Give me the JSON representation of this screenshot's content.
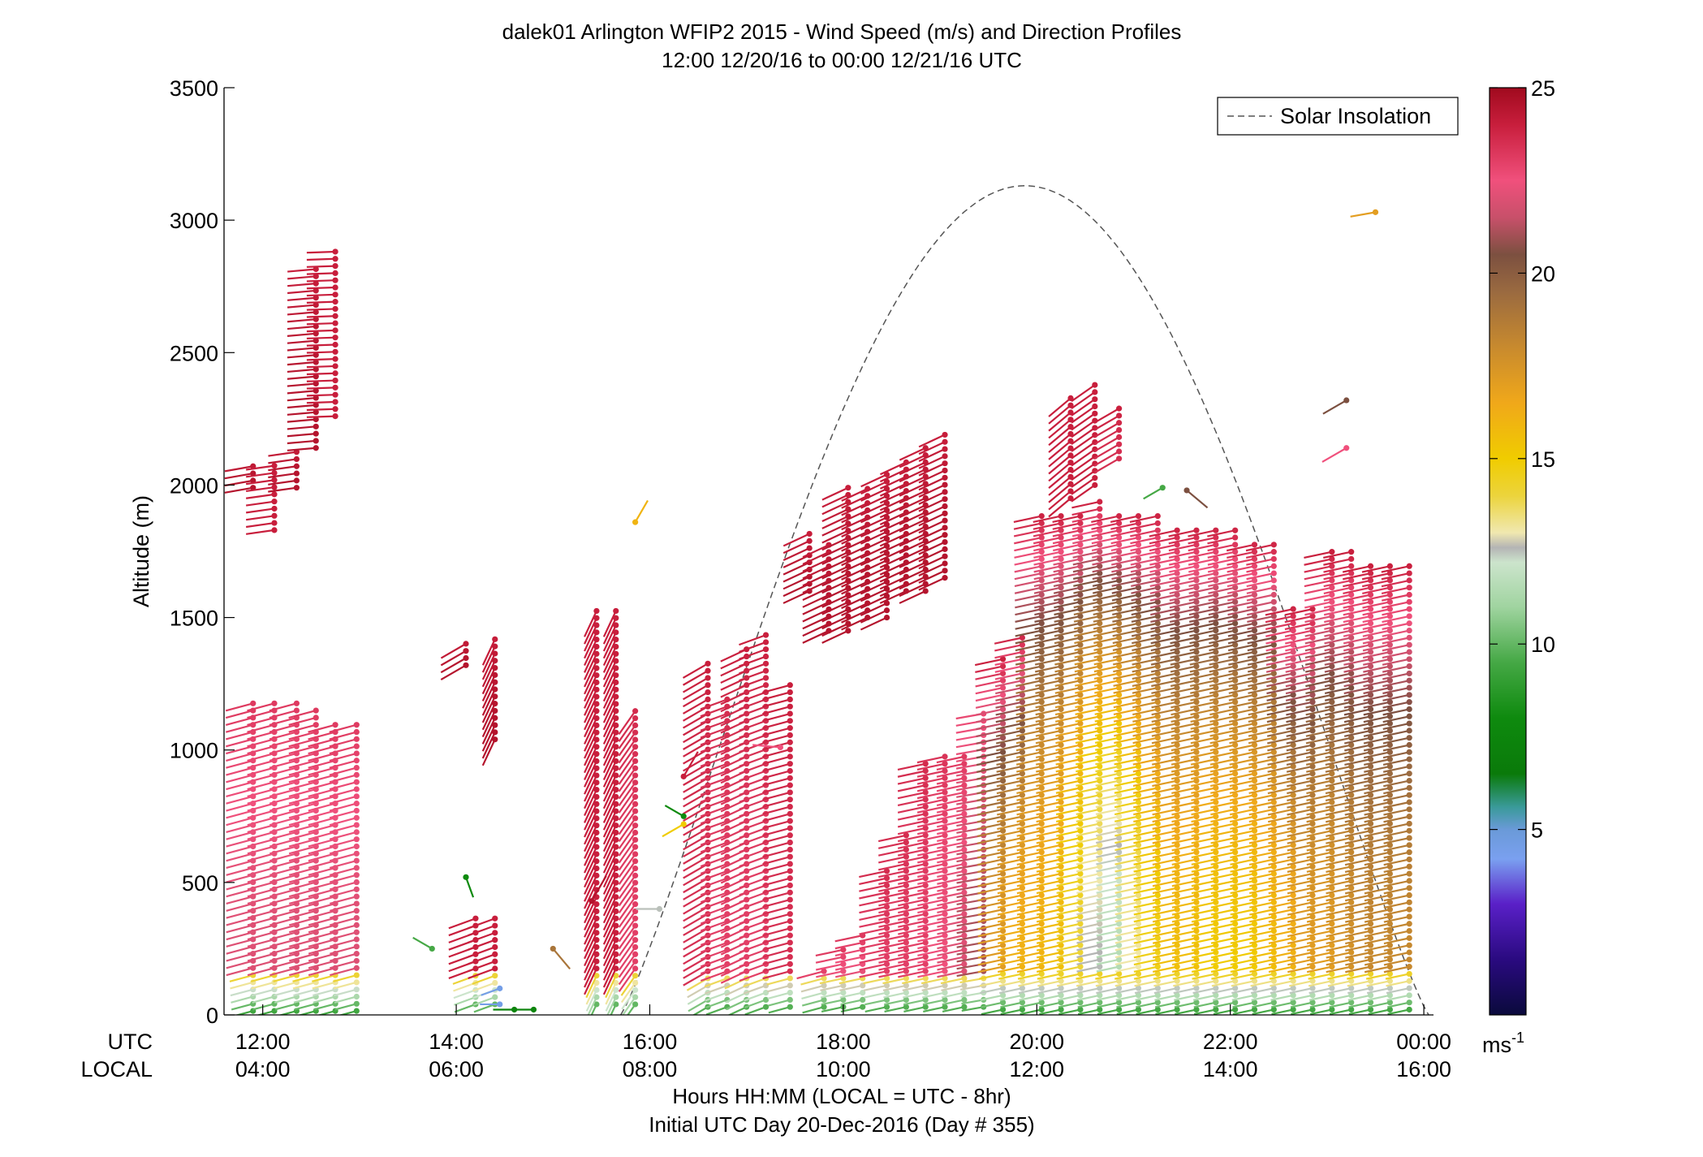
{
  "chart_data": {
    "type": "scatter",
    "title": "dalek01 Arlington WFIP2 2015 - Wind Speed (m/s) and Direction Profiles",
    "subtitle": "12:00 12/20/16 to 00:00 12/21/16  UTC",
    "ylabel": "Altitude (m)",
    "xlabel": "Hours HH:MM  (LOCAL = UTC - 8hr)",
    "xlabel2": "Initial UTC Day 20-Dec-2016 (Day # 355)",
    "row_label_utc": "UTC",
    "row_label_local": "LOCAL",
    "xlim": [
      11.6,
      24.1
    ],
    "ylim": [
      0,
      3500
    ],
    "x_ticks_utc": [
      {
        "x": 12,
        "label": "12:00"
      },
      {
        "x": 14,
        "label": "14:00"
      },
      {
        "x": 16,
        "label": "16:00"
      },
      {
        "x": 18,
        "label": "18:00"
      },
      {
        "x": 20,
        "label": "20:00"
      },
      {
        "x": 22,
        "label": "22:00"
      },
      {
        "x": 24,
        "label": "00:00"
      }
    ],
    "x_ticks_local": [
      "04:00",
      "06:00",
      "08:00",
      "10:00",
      "12:00",
      "14:00",
      "16:00"
    ],
    "y_ticks": [
      {
        "y": 0,
        "label": "0"
      },
      {
        "y": 500,
        "label": "500"
      },
      {
        "y": 1000,
        "label": "1000"
      },
      {
        "y": 1500,
        "label": "1500"
      },
      {
        "y": 2000,
        "label": "2000"
      },
      {
        "y": 2500,
        "label": "2500"
      },
      {
        "y": 3000,
        "label": "3000"
      },
      {
        "y": 3500,
        "label": "3500"
      }
    ],
    "legend": {
      "label": "Solar Insolation",
      "placement": "top-right",
      "line_style": "dashed",
      "color": "#555555"
    },
    "solar_insolation": {
      "sunrise": 15.7,
      "sunset": 24.05,
      "peak_time": 19.85,
      "peak_altitude": 3130
    },
    "colorbar": {
      "label": "ms",
      "label_superscript": "-1",
      "range": [
        0,
        25
      ],
      "ticks": [
        {
          "v": 5,
          "label": "5"
        },
        {
          "v": 10,
          "label": "10"
        },
        {
          "v": 15,
          "label": "15"
        },
        {
          "v": 20,
          "label": "20"
        },
        {
          "v": 25,
          "label": "25"
        }
      ],
      "stops": [
        {
          "v": 0,
          "color": "#0a0a3c"
        },
        {
          "v": 1.5,
          "color": "#2a0a80"
        },
        {
          "v": 3,
          "color": "#5a20c8"
        },
        {
          "v": 4.2,
          "color": "#7aa0f0"
        },
        {
          "v": 5,
          "color": "#6a9ad8"
        },
        {
          "v": 5.6,
          "color": "#3a9a9a"
        },
        {
          "v": 6.5,
          "color": "#0a7a0a"
        },
        {
          "v": 8,
          "color": "#0e8a0e"
        },
        {
          "v": 9.5,
          "color": "#45a845"
        },
        {
          "v": 11,
          "color": "#a0d4a0"
        },
        {
          "v": 12.2,
          "color": "#cce4cc"
        },
        {
          "v": 12.6,
          "color": "#b4b4b4"
        },
        {
          "v": 13,
          "color": "#f0e8b0"
        },
        {
          "v": 14,
          "color": "#ecd43c"
        },
        {
          "v": 15,
          "color": "#f0cc00"
        },
        {
          "v": 16.5,
          "color": "#f0a81a"
        },
        {
          "v": 18,
          "color": "#c88a2e"
        },
        {
          "v": 19.5,
          "color": "#9a6a40"
        },
        {
          "v": 20.5,
          "color": "#7c5040"
        },
        {
          "v": 21.5,
          "color": "#c8506a"
        },
        {
          "v": 22.5,
          "color": "#f0507c"
        },
        {
          "v": 24,
          "color": "#c81e3c"
        },
        {
          "v": 25,
          "color": "#a00a1e"
        }
      ]
    },
    "profiles": [
      {
        "t": 11.9,
        "h0": 1990,
        "h1": 2095,
        "spd": 24.5,
        "dir": 260
      },
      {
        "t": 12.12,
        "h0": 1830,
        "h1": 2095,
        "spd": 24,
        "dir": 262
      },
      {
        "t": 12.35,
        "h0": 1990,
        "h1": 2150,
        "spd": 24.5,
        "dir": 262
      },
      {
        "t": 12.55,
        "h0": 2140,
        "h1": 2830,
        "spd": 24.5,
        "dir": 265
      },
      {
        "t": 12.75,
        "h0": 2260,
        "h1": 2900,
        "spd": 24,
        "dir": 268
      },
      {
        "t": 11.9,
        "h0": 15,
        "h1": 1180,
        "spd": 22,
        "dir": 255
      },
      {
        "t": 12.12,
        "h0": 15,
        "h1": 1200,
        "spd": 22,
        "dir": 255
      },
      {
        "t": 12.35,
        "h0": 15,
        "h1": 1200,
        "spd": 22,
        "dir": 255
      },
      {
        "t": 12.55,
        "h0": 15,
        "h1": 1160,
        "spd": 22,
        "dir": 255
      },
      {
        "t": 12.75,
        "h0": 15,
        "h1": 1120,
        "spd": 22,
        "dir": 255
      },
      {
        "t": 12.97,
        "h0": 15,
        "h1": 1120,
        "spd": 22,
        "dir": 255
      },
      {
        "t": 14.1,
        "h0": 1320,
        "h1": 1420,
        "spd": 24.5,
        "dir": 240
      },
      {
        "t": 14.2,
        "h0": 40,
        "h1": 380,
        "spd": 24,
        "dir": 250
      },
      {
        "t": 14.4,
        "h0": 40,
        "h1": 380,
        "spd": 24,
        "dir": 250
      },
      {
        "t": 14.4,
        "h0": 1040,
        "h1": 1440,
        "spd": 24.5,
        "dir": 205
      },
      {
        "t": 15.45,
        "h0": 40,
        "h1": 1550,
        "spd": 24,
        "dir": 205
      },
      {
        "t": 15.65,
        "h0": 40,
        "h1": 1550,
        "spd": 24,
        "dir": 205
      },
      {
        "t": 15.85,
        "h0": 40,
        "h1": 1150,
        "spd": 23,
        "dir": 215
      },
      {
        "t": 16.6,
        "h0": 30,
        "h1": 1330,
        "spd": 23.5,
        "dir": 240
      },
      {
        "t": 16.8,
        "h0": 30,
        "h1": 1200,
        "spd": 23,
        "dir": 250
      },
      {
        "t": 17.0,
        "h0": 30,
        "h1": 1400,
        "spd": 23,
        "dir": 245
      },
      {
        "t": 17.2,
        "h0": 30,
        "h1": 1450,
        "spd": 23,
        "dir": 250
      },
      {
        "t": 17.45,
        "h0": 30,
        "h1": 1250,
        "spd": 23.5,
        "dir": 255
      },
      {
        "t": 17.65,
        "h0": 1600,
        "h1": 1820,
        "spd": 24.5,
        "dir": 245
      },
      {
        "t": 17.8,
        "h0": 30,
        "h1": 180,
        "spd": 22,
        "dir": 255
      },
      {
        "t": 17.85,
        "h0": 1450,
        "h1": 1800,
        "spd": 24.5,
        "dir": 245
      },
      {
        "t": 18.05,
        "h0": 1450,
        "h1": 2000,
        "spd": 24.5,
        "dir": 245
      },
      {
        "t": 18.25,
        "h0": 1500,
        "h1": 2000,
        "spd": 24.5,
        "dir": 245
      },
      {
        "t": 18.45,
        "h0": 1500,
        "h1": 2050,
        "spd": 24.5,
        "dir": 245
      },
      {
        "t": 18.65,
        "h0": 1600,
        "h1": 2100,
        "spd": 24.5,
        "dir": 245
      },
      {
        "t": 18.85,
        "h0": 1600,
        "h1": 2150,
        "spd": 24.5,
        "dir": 245
      },
      {
        "t": 19.05,
        "h0": 1650,
        "h1": 2200,
        "spd": 24.5,
        "dir": 245
      },
      {
        "t": 18.0,
        "h0": 30,
        "h1": 250,
        "spd": 22,
        "dir": 258
      },
      {
        "t": 18.2,
        "h0": 30,
        "h1": 300,
        "spd": 22,
        "dir": 258
      },
      {
        "t": 18.45,
        "h0": 30,
        "h1": 550,
        "spd": 23,
        "dir": 258
      },
      {
        "t": 18.65,
        "h0": 30,
        "h1": 700,
        "spd": 23,
        "dir": 258
      },
      {
        "t": 18.85,
        "h0": 30,
        "h1": 950,
        "spd": 23,
        "dir": 258
      },
      {
        "t": 19.05,
        "h0": 30,
        "h1": 1000,
        "spd": 22.5,
        "dir": 258
      },
      {
        "t": 19.25,
        "h0": 30,
        "h1": 1000,
        "spd": 22,
        "dir": 258
      },
      {
        "t": 19.45,
        "h0": 30,
        "h1": 1150,
        "spd": 21,
        "dir": 260
      },
      {
        "t": 19.65,
        "h0": 20,
        "h1": 1350,
        "spd": 17,
        "dir": 258
      },
      {
        "t": 19.85,
        "h0": 20,
        "h1": 1450,
        "spd": 16,
        "dir": 258
      },
      {
        "t": 20.05,
        "h0": 20,
        "h1": 1900,
        "spd": 16,
        "dir": 258
      },
      {
        "t": 20.25,
        "h0": 20,
        "h1": 1900,
        "spd": 15.5,
        "dir": 258
      },
      {
        "t": 20.45,
        "h0": 20,
        "h1": 1900,
        "spd": 14,
        "dir": 258
      },
      {
        "t": 20.65,
        "h0": 20,
        "h1": 1950,
        "spd": 12.5,
        "dir": 258
      },
      {
        "t": 20.85,
        "h0": 20,
        "h1": 1900,
        "spd": 11.5,
        "dir": 258
      },
      {
        "t": 21.05,
        "h0": 20,
        "h1": 1900,
        "spd": 13,
        "dir": 258
      },
      {
        "t": 21.25,
        "h0": 20,
        "h1": 1900,
        "spd": 14.5,
        "dir": 258
      },
      {
        "t": 21.45,
        "h0": 20,
        "h1": 1850,
        "spd": 15.5,
        "dir": 258
      },
      {
        "t": 21.65,
        "h0": 20,
        "h1": 1850,
        "spd": 15.5,
        "dir": 258
      },
      {
        "t": 21.85,
        "h0": 20,
        "h1": 1850,
        "spd": 15,
        "dir": 258
      },
      {
        "t": 22.05,
        "h0": 20,
        "h1": 1850,
        "spd": 15,
        "dir": 258
      },
      {
        "t": 22.25,
        "h0": 20,
        "h1": 1800,
        "spd": 15,
        "dir": 258
      },
      {
        "t": 22.45,
        "h0": 20,
        "h1": 1800,
        "spd": 15.5,
        "dir": 258
      },
      {
        "t": 22.65,
        "h0": 20,
        "h1": 1550,
        "spd": 16,
        "dir": 258
      },
      {
        "t": 22.85,
        "h0": 20,
        "h1": 1550,
        "spd": 17,
        "dir": 258
      },
      {
        "t": 23.05,
        "h0": 20,
        "h1": 1750,
        "spd": 17,
        "dir": 258
      },
      {
        "t": 23.25,
        "h0": 20,
        "h1": 1750,
        "spd": 17.5,
        "dir": 258
      },
      {
        "t": 23.45,
        "h0": 20,
        "h1": 1700,
        "spd": 18,
        "dir": 258
      },
      {
        "t": 23.65,
        "h0": 20,
        "h1": 1700,
        "spd": 18,
        "dir": 258
      },
      {
        "t": 23.85,
        "h0": 20,
        "h1": 1700,
        "spd": 18,
        "dir": 258
      },
      {
        "t": 20.35,
        "h0": 1950,
        "h1": 2350,
        "spd": 24,
        "dir": 230
      },
      {
        "t": 20.6,
        "h0": 2000,
        "h1": 2400,
        "spd": 24,
        "dir": 235
      },
      {
        "t": 20.85,
        "h0": 2100,
        "h1": 2300,
        "spd": 23.5,
        "dir": 240
      }
    ],
    "isolated_barbs": [
      {
        "t": 14.1,
        "h": 520,
        "spd": 8,
        "dir": 160
      },
      {
        "t": 14.6,
        "h": 20,
        "spd": 7.5,
        "dir": 270
      },
      {
        "t": 14.8,
        "h": 20,
        "spd": 7.5,
        "dir": 270
      },
      {
        "t": 13.75,
        "h": 250,
        "spd": 9.5,
        "dir": 300
      },
      {
        "t": 14.45,
        "h": 100,
        "spd": 4.5,
        "dir": 250
      },
      {
        "t": 14.45,
        "h": 40,
        "spd": 4.5,
        "dir": 270
      },
      {
        "t": 15.0,
        "h": 250,
        "spd": 19,
        "dir": 140
      },
      {
        "t": 15.4,
        "h": 430,
        "spd": 24.5,
        "dir": 30
      },
      {
        "t": 15.85,
        "h": 1860,
        "spd": 16,
        "dir": 30
      },
      {
        "t": 16.35,
        "h": 750,
        "spd": 8,
        "dir": 300
      },
      {
        "t": 16.35,
        "h": 720,
        "spd": 15,
        "dir": 240
      },
      {
        "t": 16.1,
        "h": 400,
        "spd": 12.5,
        "dir": 270
      },
      {
        "t": 16.35,
        "h": 900,
        "spd": 24,
        "dir": 30
      },
      {
        "t": 17.35,
        "h": 1010,
        "spd": 22.5,
        "dir": 275
      },
      {
        "t": 23.2,
        "h": 2320,
        "spd": 20.5,
        "dir": 240
      },
      {
        "t": 23.2,
        "h": 2140,
        "spd": 22.5,
        "dir": 240
      },
      {
        "t": 23.5,
        "h": 3030,
        "spd": 17,
        "dir": 260
      },
      {
        "t": 21.55,
        "h": 1980,
        "spd": 20.5,
        "dir": 130
      },
      {
        "t": 21.3,
        "h": 1990,
        "spd": 9.5,
        "dir": 240
      }
    ]
  }
}
